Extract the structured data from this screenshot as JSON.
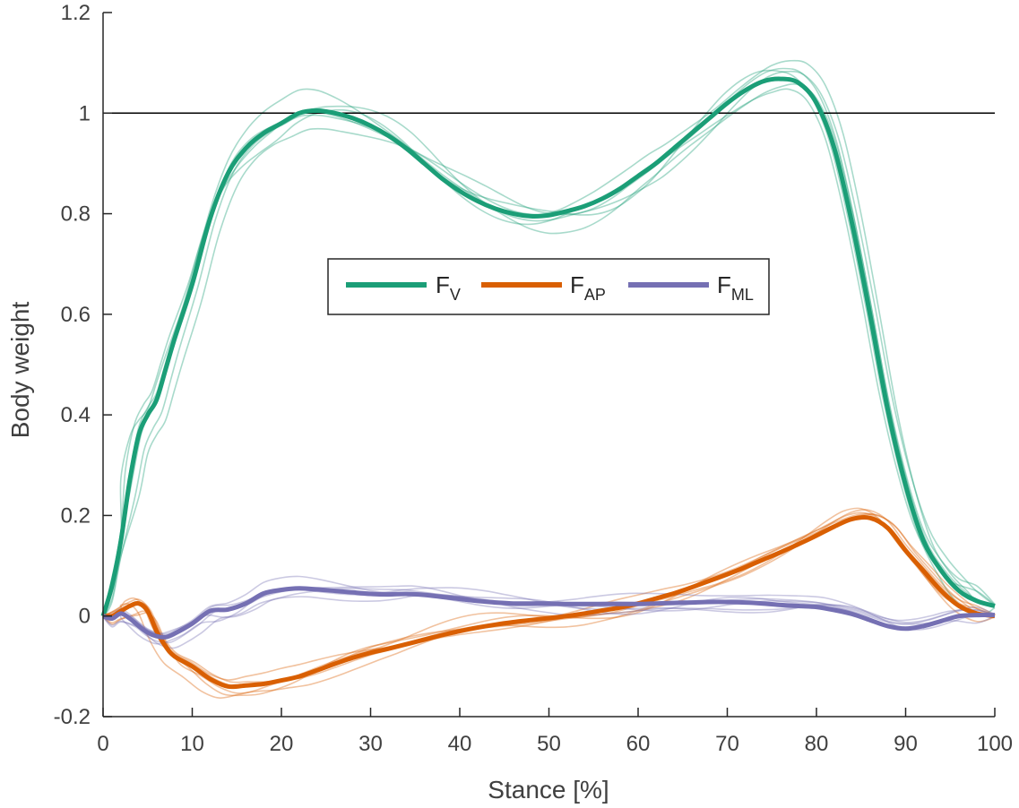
{
  "chart_data": {
    "type": "line",
    "xlabel": "Stance [%]",
    "ylabel": "Body weight",
    "xlim": [
      0,
      100
    ],
    "ylim": [
      -0.2,
      1.2
    ],
    "xticks": [
      0,
      10,
      20,
      30,
      40,
      50,
      60,
      70,
      80,
      90,
      100
    ],
    "yticks": [
      -0.2,
      0,
      0.2,
      0.4,
      0.6,
      0.8,
      1,
      1.2
    ],
    "xtick_labels": [
      "0",
      "10",
      "20",
      "30",
      "40",
      "50",
      "60",
      "70",
      "80",
      "90",
      "100"
    ],
    "ytick_labels": [
      "-0.2",
      "0",
      "0.2",
      "0.4",
      "0.6",
      "0.8",
      "1",
      "1.2"
    ],
    "reference_line": {
      "y": 1,
      "color": "#000000"
    },
    "legend": {
      "placement": "center",
      "entries": [
        {
          "main": "F",
          "sub": "V",
          "color": "#1b9e77"
        },
        {
          "main": "F",
          "sub": "AP",
          "color": "#d95f02"
        },
        {
          "main": "F",
          "sub": "ML",
          "color": "#7570b3"
        }
      ]
    },
    "series": [
      {
        "name": "F_V",
        "label_main": "F",
        "label_sub": "V",
        "color": "#1b9e77",
        "x": [
          0,
          1,
          2,
          3,
          4,
          5,
          6,
          7,
          8,
          10,
          12,
          14,
          16,
          18,
          20,
          22,
          24,
          26,
          28,
          30,
          32,
          34,
          36,
          38,
          40,
          42,
          44,
          46,
          48,
          50,
          52,
          54,
          56,
          58,
          60,
          62,
          64,
          66,
          68,
          70,
          72,
          74,
          76,
          78,
          80,
          82,
          84,
          86,
          88,
          90,
          92,
          94,
          96,
          98,
          100
        ],
        "values": [
          0.0,
          0.06,
          0.15,
          0.27,
          0.36,
          0.4,
          0.43,
          0.49,
          0.55,
          0.66,
          0.79,
          0.88,
          0.93,
          0.96,
          0.98,
          1.0,
          1.005,
          1.0,
          0.99,
          0.975,
          0.955,
          0.93,
          0.9,
          0.87,
          0.845,
          0.825,
          0.81,
          0.8,
          0.795,
          0.797,
          0.805,
          0.815,
          0.83,
          0.85,
          0.875,
          0.9,
          0.93,
          0.96,
          0.99,
          1.02,
          1.045,
          1.063,
          1.068,
          1.06,
          1.02,
          0.93,
          0.78,
          0.6,
          0.41,
          0.26,
          0.15,
          0.09,
          0.05,
          0.03,
          0.02
        ]
      },
      {
        "name": "F_AP",
        "label_main": "F",
        "label_sub": "AP",
        "color": "#d95f02",
        "x": [
          0,
          1,
          2,
          3,
          4,
          5,
          6,
          7,
          8,
          10,
          12,
          14,
          16,
          18,
          20,
          22,
          24,
          26,
          28,
          30,
          32,
          34,
          36,
          38,
          40,
          42,
          44,
          46,
          48,
          50,
          52,
          54,
          56,
          58,
          60,
          62,
          64,
          66,
          68,
          70,
          72,
          74,
          76,
          78,
          80,
          82,
          84,
          86,
          88,
          90,
          92,
          94,
          96,
          98,
          100
        ],
        "values": [
          0.0,
          0.0,
          0.01,
          0.02,
          0.025,
          0.01,
          -0.03,
          -0.06,
          -0.08,
          -0.1,
          -0.125,
          -0.14,
          -0.138,
          -0.135,
          -0.128,
          -0.12,
          -0.108,
          -0.095,
          -0.083,
          -0.073,
          -0.065,
          -0.056,
          -0.047,
          -0.038,
          -0.03,
          -0.023,
          -0.017,
          -0.012,
          -0.008,
          -0.004,
          0.0,
          0.005,
          0.011,
          0.017,
          0.025,
          0.035,
          0.045,
          0.057,
          0.07,
          0.083,
          0.097,
          0.112,
          0.127,
          0.143,
          0.16,
          0.178,
          0.193,
          0.195,
          0.175,
          0.13,
          0.09,
          0.05,
          0.02,
          0.005,
          0.0
        ]
      },
      {
        "name": "F_ML",
        "label_main": "F",
        "label_sub": "ML",
        "color": "#7570b3",
        "x": [
          0,
          1,
          2,
          3,
          4,
          5,
          6,
          7,
          8,
          10,
          12,
          14,
          16,
          18,
          20,
          22,
          24,
          26,
          28,
          30,
          32,
          34,
          36,
          38,
          40,
          42,
          44,
          46,
          48,
          50,
          52,
          54,
          56,
          58,
          60,
          62,
          64,
          66,
          68,
          70,
          72,
          74,
          76,
          78,
          80,
          82,
          84,
          86,
          88,
          90,
          92,
          94,
          96,
          98,
          100
        ],
        "values": [
          0.0,
          -0.005,
          0.005,
          -0.005,
          -0.02,
          -0.033,
          -0.04,
          -0.042,
          -0.035,
          -0.015,
          0.01,
          0.013,
          0.025,
          0.045,
          0.052,
          0.055,
          0.053,
          0.05,
          0.047,
          0.044,
          0.043,
          0.044,
          0.042,
          0.038,
          0.034,
          0.03,
          0.027,
          0.025,
          0.025,
          0.025,
          0.024,
          0.024,
          0.024,
          0.024,
          0.024,
          0.025,
          0.026,
          0.027,
          0.028,
          0.028,
          0.027,
          0.025,
          0.022,
          0.02,
          0.018,
          0.012,
          0.004,
          -0.008,
          -0.02,
          -0.025,
          -0.02,
          -0.01,
          0.0,
          0.002,
          0.002
        ]
      }
    ]
  }
}
